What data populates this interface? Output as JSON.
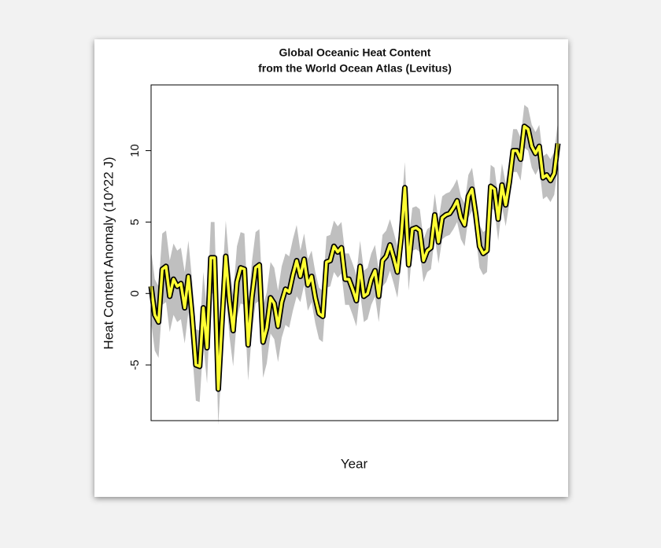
{
  "chart_data": {
    "type": "line",
    "title": "Global Oceanic Heat Content",
    "subtitle": "from the World Ocean Atlas (Levitus)",
    "xlabel": "Year",
    "ylabel": "Heat Content Anomaly (10^22 J)",
    "ylim": [
      -8.9,
      14.6
    ],
    "yticks": [
      -5,
      0,
      5,
      10
    ],
    "color": "#ffff33",
    "band_color": "#bfbfbf",
    "values": [
      0.5,
      -1.5,
      -2,
      1.7,
      1.9,
      -0.2,
      1.0,
      0.5,
      0.7,
      -1,
      1.2,
      -1.6,
      -5,
      -5.1,
      -1,
      -3.8,
      2.5,
      2.5,
      -6.7,
      -2,
      2.6,
      -0.5,
      -2.6,
      0.8,
      1.8,
      1.7,
      -3.6,
      -0.3,
      1.8,
      2.0,
      -3.4,
      -2.4,
      -0.3,
      -0.7,
      -2.3,
      -0.6,
      0.3,
      0.1,
      1.3,
      2.3,
      1.2,
      2.4,
      0.6,
      1.2,
      -0.3,
      -1.4,
      -1.6,
      2.2,
      2.3,
      3.3,
      2.9,
      3.2,
      1.0,
      1.0,
      0.3,
      -0.5,
      1.9,
      -0.2,
      0.0,
      1.0,
      1.6,
      -0.2,
      2.3,
      2.6,
      3.4,
      2.5,
      1.5,
      3.9,
      7.4,
      2.0,
      4.5,
      4.6,
      4.4,
      2.3,
      3.0,
      3.2,
      5.5,
      3.6,
      5.3,
      5.5,
      5.6,
      6.0,
      6.5,
      5.3,
      4.8,
      6.8,
      7.3,
      5.5,
      3.3,
      2.8,
      3.0,
      7.5,
      7.3,
      5.2,
      7.6,
      6.2,
      7.8,
      10.0,
      10.0,
      9.4,
      11.7,
      11.5,
      10.3,
      9.8,
      10.3,
      8.1,
      8.3,
      7.9,
      8.4,
      10.5
    ],
    "error": [
      2.5,
      2.5,
      2.5,
      2.5,
      2.5,
      2.5,
      2.5,
      2.5,
      2.5,
      2.5,
      2.5,
      2.5,
      2.5,
      2.5,
      2.5,
      2.5,
      2.5,
      2.5,
      2.5,
      2.5,
      2.5,
      2.5,
      2.5,
      2.5,
      2.5,
      2.5,
      2.5,
      2.5,
      2.5,
      2.5,
      2.5,
      2.5,
      2.5,
      2.5,
      2.5,
      2.5,
      2.5,
      2.5,
      2.5,
      2.5,
      1.8,
      1.8,
      1.8,
      1.8,
      1.8,
      1.8,
      1.8,
      1.8,
      1.8,
      1.8,
      1.8,
      1.8,
      1.8,
      1.8,
      1.8,
      1.8,
      1.8,
      1.8,
      1.8,
      1.8,
      1.8,
      1.8,
      1.8,
      1.8,
      1.8,
      1.8,
      1.8,
      1.8,
      1.8,
      1.8,
      1.5,
      1.5,
      1.5,
      1.5,
      1.5,
      1.5,
      1.5,
      1.5,
      1.5,
      1.5,
      1.5,
      1.5,
      1.5,
      1.5,
      1.5,
      1.5,
      1.5,
      1.5,
      1.5,
      1.5,
      1.5,
      1.5,
      1.5,
      1.5,
      1.5,
      1.5,
      1.5,
      1.5,
      1.5,
      1.5,
      1.5,
      1.5,
      1.5,
      1.5,
      1.5,
      1.5,
      1.5,
      1.5,
      1.5,
      1.5
    ]
  }
}
